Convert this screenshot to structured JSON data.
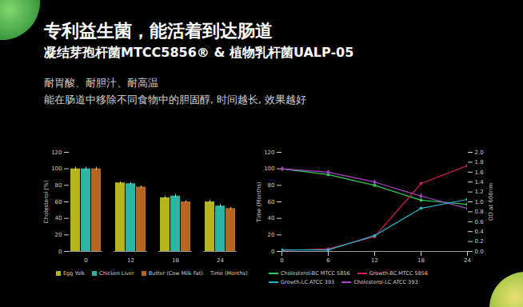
{
  "header": {
    "title": "专利益生菌，能活着到达肠道",
    "subtitle": "凝结芽孢杆菌MTCC5856® & 植物乳杆菌UALP-05",
    "lines": [
      "耐胃酸、耐胆汁、耐高温",
      "能在肠道中移除不同食物中的胆固醇, 时间越长, 效果越好"
    ]
  },
  "chart_data": [
    {
      "type": "bar",
      "categories": [
        "0",
        "12",
        "18",
        "24"
      ],
      "x_label": "Time (Months)",
      "y_label": "Cholesterol (%)",
      "ylim": [
        0,
        120
      ],
      "yticks": [
        0,
        20,
        40,
        60,
        80,
        100,
        120
      ],
      "legend": "bottom",
      "series": [
        {
          "name": "Egg Yolk",
          "color": "#b3b51c",
          "values": [
            100,
            83,
            65,
            60
          ],
          "errors": [
            2,
            1.5,
            2,
            2
          ]
        },
        {
          "name": "Chicken Liver",
          "color": "#2bb3a3",
          "values": [
            100,
            82,
            67,
            55
          ],
          "errors": [
            2,
            1.5,
            2,
            2
          ]
        },
        {
          "name": "Butter (Cow Milk Fat)",
          "color": "#b5651d",
          "values": [
            100,
            78,
            60,
            52
          ],
          "errors": [
            2,
            1.5,
            1.5,
            1.5
          ]
        }
      ]
    },
    {
      "type": "line",
      "x": [
        0,
        6,
        12,
        18,
        24
      ],
      "xlim": [
        0,
        24
      ],
      "xticks": [
        0,
        6,
        12,
        18,
        24
      ],
      "y_label": "Time (Months)",
      "ylim": [
        0,
        120
      ],
      "yticks": [
        0,
        20,
        40,
        60,
        80,
        100,
        120
      ],
      "y2_label": "OD at 600nm",
      "y2lim": [
        0,
        2
      ],
      "y2ticks": [
        {
          "value": 0,
          "label": "0.0"
        },
        0.2,
        0.4,
        0.6,
        0.8,
        {
          "value": 1,
          "label": "1.0"
        },
        1.2,
        1.4,
        1.6,
        1.8,
        {
          "value": 2,
          "label": "2.0"
        }
      ],
      "legend": "bottom",
      "series": [
        {
          "name": "Cholesterol-BC MTCC 5856",
          "color": "#2ecc55",
          "marker": "square",
          "values": [
            100,
            93,
            80,
            62,
            57
          ]
        },
        {
          "name": "Growth-BC MTCC 5856",
          "color": "#d81b60",
          "marker": "circle",
          "axis": "y2",
          "values": [
            0.02,
            0.05,
            0.3,
            1.37,
            1.73
          ]
        },
        {
          "name": "Growth-LC ATCC 393",
          "color": "#1fb5c9",
          "marker": "circle",
          "axis": "y2",
          "values": [
            0.03,
            0.03,
            0.32,
            0.87,
            1.05
          ]
        },
        {
          "name": "Cholesterol-LC ATCC 393",
          "color": "#b040d0",
          "marker": "diamond",
          "values": [
            100,
            96,
            84,
            67,
            52
          ]
        }
      ]
    }
  ]
}
